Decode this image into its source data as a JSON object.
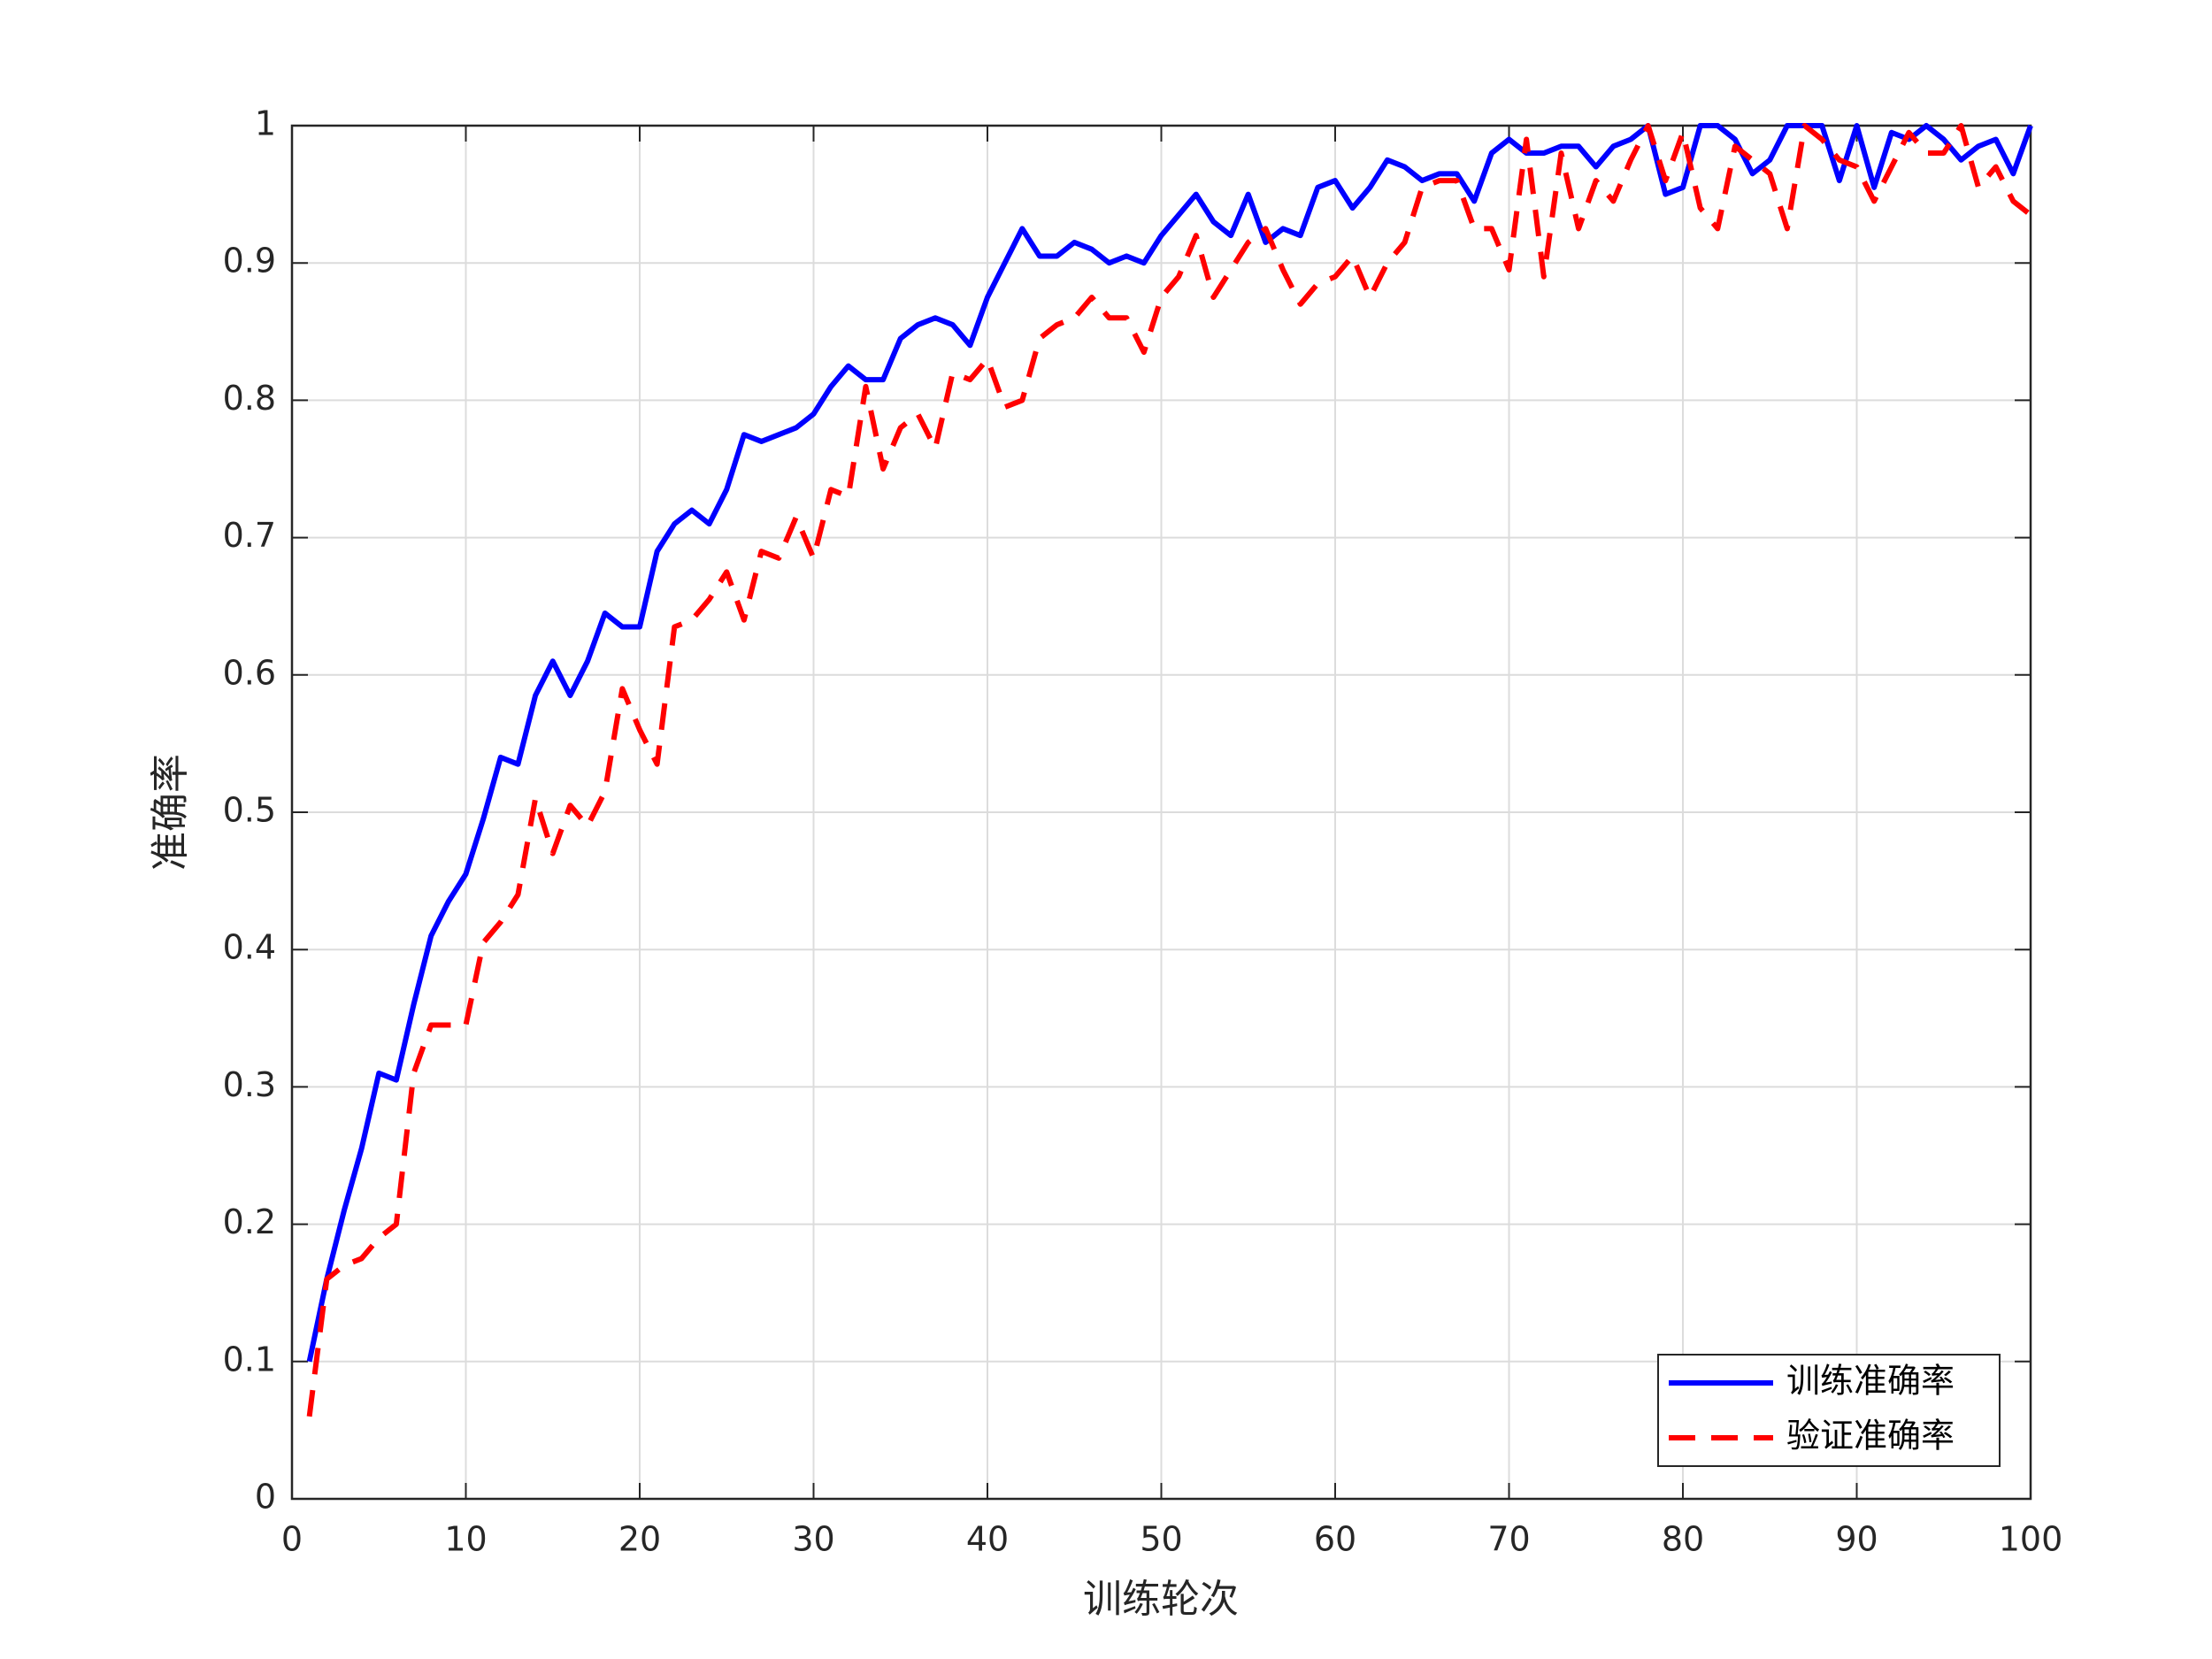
{
  "chart_data": {
    "type": "line",
    "xlabel": "训练轮次",
    "ylabel": "准确率",
    "x": [
      1,
      2,
      3,
      4,
      5,
      6,
      7,
      8,
      9,
      10,
      11,
      12,
      13,
      14,
      15,
      16,
      17,
      18,
      19,
      20,
      21,
      22,
      23,
      24,
      25,
      26,
      27,
      28,
      29,
      30,
      31,
      32,
      33,
      34,
      35,
      36,
      37,
      38,
      39,
      40,
      41,
      42,
      43,
      44,
      45,
      46,
      47,
      48,
      49,
      50,
      51,
      52,
      53,
      54,
      55,
      56,
      57,
      58,
      59,
      60,
      61,
      62,
      63,
      64,
      65,
      66,
      67,
      68,
      69,
      70,
      71,
      72,
      73,
      74,
      75,
      76,
      77,
      78,
      79,
      80,
      81,
      82,
      83,
      84,
      85,
      86,
      87,
      88,
      89,
      90,
      91,
      92,
      93,
      94,
      95,
      96,
      97,
      98,
      99,
      100
    ],
    "series": [
      {
        "name": "训练准确率",
        "color": "#0000ff",
        "dash": false,
        "values": [
          0.1,
          0.16,
          0.21,
          0.255,
          0.31,
          0.305,
          0.36,
          0.41,
          0.435,
          0.455,
          0.495,
          0.54,
          0.535,
          0.585,
          0.61,
          0.585,
          0.61,
          0.645,
          0.635,
          0.635,
          0.69,
          0.71,
          0.72,
          0.71,
          0.735,
          0.775,
          0.77,
          0.775,
          0.78,
          0.79,
          0.81,
          0.825,
          0.815,
          0.815,
          0.845,
          0.855,
          0.86,
          0.855,
          0.84,
          0.875,
          0.9,
          0.925,
          0.905,
          0.905,
          0.915,
          0.91,
          0.9,
          0.905,
          0.9,
          0.92,
          0.935,
          0.95,
          0.93,
          0.92,
          0.95,
          0.915,
          0.925,
          0.92,
          0.955,
          0.96,
          0.94,
          0.955,
          0.975,
          0.97,
          0.96,
          0.965,
          0.965,
          0.945,
          0.98,
          0.99,
          0.98,
          0.98,
          0.985,
          0.985,
          0.97,
          0.985,
          0.99,
          1.0,
          0.95,
          0.955,
          1.0,
          1.0,
          0.99,
          0.965,
          0.975,
          1.0,
          1.0,
          1.0,
          0.96,
          1.0,
          0.955,
          0.995,
          0.99,
          1.0,
          0.99,
          0.975,
          0.985,
          0.99,
          0.965,
          1.0
        ]
      },
      {
        "name": "验证准确率",
        "color": "#ff0000",
        "dash": true,
        "values": [
          0.06,
          0.16,
          0.17,
          0.175,
          0.19,
          0.2,
          0.31,
          0.345,
          0.345,
          0.345,
          0.405,
          0.42,
          0.44,
          0.51,
          0.47,
          0.505,
          0.49,
          0.515,
          0.59,
          0.56,
          0.535,
          0.635,
          0.64,
          0.655,
          0.675,
          0.64,
          0.69,
          0.685,
          0.715,
          0.685,
          0.735,
          0.73,
          0.81,
          0.75,
          0.78,
          0.79,
          0.765,
          0.82,
          0.815,
          0.83,
          0.795,
          0.8,
          0.845,
          0.855,
          0.86,
          0.875,
          0.86,
          0.86,
          0.835,
          0.875,
          0.89,
          0.92,
          0.875,
          0.895,
          0.915,
          0.925,
          0.895,
          0.87,
          0.885,
          0.89,
          0.905,
          0.875,
          0.9,
          0.915,
          0.955,
          0.96,
          0.96,
          0.925,
          0.925,
          0.895,
          0.99,
          0.89,
          0.98,
          0.925,
          0.96,
          0.945,
          0.975,
          1.0,
          0.96,
          0.995,
          0.94,
          0.925,
          0.985,
          0.975,
          0.965,
          0.925,
          1.0,
          0.99,
          0.975,
          0.97,
          0.945,
          0.97,
          0.995,
          0.98,
          0.98,
          1.0,
          0.955,
          0.97,
          0.945,
          0.935
        ]
      }
    ],
    "xlim": [
      0,
      100
    ],
    "xticks": [
      0,
      10,
      20,
      30,
      40,
      50,
      60,
      70,
      80,
      90,
      100
    ],
    "ylim": [
      0,
      1
    ],
    "yticks": [
      0,
      0.1,
      0.2,
      0.3,
      0.4,
      0.5,
      0.6,
      0.7,
      0.8,
      0.9,
      1
    ],
    "grid": true,
    "legend": "lower right"
  }
}
